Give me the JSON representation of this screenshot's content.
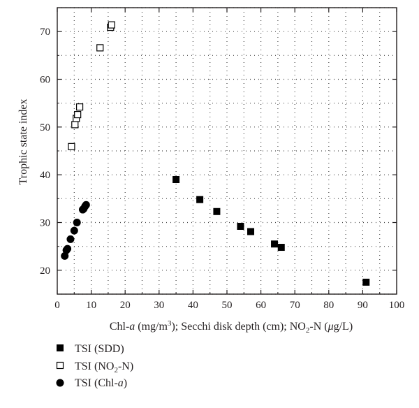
{
  "chart_data": {
    "type": "scatter",
    "title": "",
    "xlabel_parts": {
      "a": "Chl-",
      "b": "a",
      "c": " (mg/m",
      "d": "3",
      "e": "); Secchi disk depth (cm); NO",
      "f": "2",
      "g": "-N (",
      "h": "μ",
      "i": "g/L)"
    },
    "ylabel": "Trophic state index",
    "xlim": [
      0,
      100
    ],
    "ylim": [
      15,
      75
    ],
    "xticks": [
      "0",
      "10",
      "20",
      "30",
      "40",
      "50",
      "60",
      "70",
      "80",
      "90",
      "100"
    ],
    "yticks": [
      "20",
      "30",
      "40",
      "50",
      "60",
      "70"
    ],
    "grid": true,
    "legend_position": "below-left",
    "series": [
      {
        "name": "TSI (SDD)",
        "marker": "filled-square",
        "color": "#000000",
        "points": [
          [
            35,
            39
          ],
          [
            42,
            34.8
          ],
          [
            47,
            32.3
          ],
          [
            54,
            29.2
          ],
          [
            57,
            28.1
          ],
          [
            64,
            25.5
          ],
          [
            66,
            24.8
          ],
          [
            91,
            17.5
          ]
        ]
      },
      {
        "name": "TSI (NO2-N)",
        "marker": "open-square",
        "color": "#000000",
        "points": [
          [
            4.2,
            45.9
          ],
          [
            5.2,
            50.5
          ],
          [
            5.6,
            51.8
          ],
          [
            6.0,
            52.6
          ],
          [
            6.6,
            54.2
          ],
          [
            12.6,
            66.6
          ],
          [
            15.7,
            70.9
          ],
          [
            16.0,
            71.4
          ]
        ]
      },
      {
        "name": "TSI (Chl-a)",
        "marker": "filled-circle",
        "color": "#000000",
        "points": [
          [
            2.2,
            23.0
          ],
          [
            2.7,
            24.2
          ],
          [
            3.0,
            24.5
          ],
          [
            3.9,
            26.5
          ],
          [
            5.0,
            28.3
          ],
          [
            5.8,
            30.0
          ],
          [
            7.5,
            32.7
          ],
          [
            7.8,
            32.9
          ],
          [
            8.2,
            33.4
          ],
          [
            8.5,
            33.7
          ]
        ]
      }
    ],
    "legend": {
      "sdd": "TSI (SDD)",
      "no2_a": "TSI (NO",
      "no2_b": "2",
      "no2_c": "-N)",
      "chl_a": "TSI (Chl-",
      "chl_b": "a",
      "chl_c": ")"
    }
  }
}
